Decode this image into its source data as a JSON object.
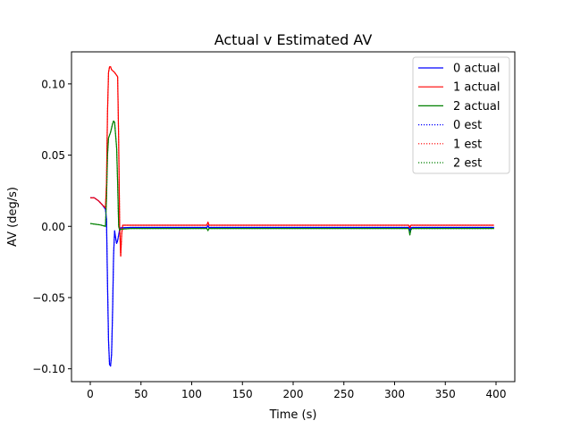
{
  "chart_data": {
    "type": "line",
    "title": "Actual v Estimated AV",
    "xlabel": "Time (s)",
    "ylabel": "AV (deg/s)",
    "xlim": [
      -18.5,
      418.5
    ],
    "ylim": [
      -0.109,
      0.1225
    ],
    "xticks": [
      0,
      50,
      100,
      150,
      200,
      250,
      300,
      350,
      400
    ],
    "yticks": [
      -0.1,
      -0.05,
      0.0,
      0.05,
      0.1
    ],
    "ytick_labels": [
      "−0.10",
      "−0.05",
      "0.00",
      "0.05",
      "0.10"
    ],
    "legend_position": "upper-right",
    "series": [
      {
        "name": "0 actual",
        "color": "#0000ff",
        "style": "solid",
        "points": [
          [
            0,
            0.02
          ],
          [
            4,
            0.02
          ],
          [
            8,
            0.018
          ],
          [
            12,
            0.015
          ],
          [
            15,
            0.012
          ],
          [
            16,
            0.005
          ],
          [
            17,
            -0.04
          ],
          [
            18,
            -0.08
          ],
          [
            19,
            -0.097
          ],
          [
            20,
            -0.098
          ],
          [
            21,
            -0.09
          ],
          [
            22,
            -0.06
          ],
          [
            23,
            -0.02
          ],
          [
            24,
            -0.003
          ],
          [
            25,
            -0.008
          ],
          [
            26,
            -0.012
          ],
          [
            27,
            -0.01
          ],
          [
            28,
            -0.006
          ],
          [
            29,
            -0.002
          ],
          [
            30,
            -0.001
          ],
          [
            40,
            -0.0008
          ],
          [
            80,
            -0.0008
          ],
          [
            115,
            -0.0008
          ],
          [
            116,
            0.0005
          ],
          [
            117,
            -0.0008
          ],
          [
            200,
            -0.0008
          ],
          [
            314,
            -0.0008
          ],
          [
            315,
            -0.003
          ],
          [
            316,
            -0.001
          ],
          [
            317,
            -0.0008
          ],
          [
            398,
            -0.0008
          ]
        ]
      },
      {
        "name": "1 actual",
        "color": "#ff0000",
        "style": "solid",
        "points": [
          [
            0,
            0.02
          ],
          [
            4,
            0.02
          ],
          [
            8,
            0.018
          ],
          [
            12,
            0.015
          ],
          [
            15,
            0.013
          ],
          [
            16,
            0.03
          ],
          [
            17,
            0.08
          ],
          [
            18,
            0.108
          ],
          [
            19,
            0.112
          ],
          [
            20,
            0.112
          ],
          [
            21,
            0.11
          ],
          [
            24,
            0.108
          ],
          [
            27,
            0.105
          ],
          [
            28,
            0.06
          ],
          [
            29,
            0.0
          ],
          [
            30,
            -0.021
          ],
          [
            31,
            -0.005
          ],
          [
            32,
            0.0008
          ],
          [
            40,
            0.0008
          ],
          [
            80,
            0.0008
          ],
          [
            115,
            0.0008
          ],
          [
            116,
            0.003
          ],
          [
            117,
            0.0008
          ],
          [
            200,
            0.0008
          ],
          [
            314,
            0.0008
          ],
          [
            315,
            -0.001
          ],
          [
            316,
            0.0008
          ],
          [
            398,
            0.0008
          ]
        ]
      },
      {
        "name": "2 actual",
        "color": "#008000",
        "style": "solid",
        "points": [
          [
            0,
            0.002
          ],
          [
            5,
            0.0015
          ],
          [
            10,
            0.001
          ],
          [
            15,
            0.0
          ],
          [
            16,
            0.02
          ],
          [
            17,
            0.05
          ],
          [
            18,
            0.062
          ],
          [
            20,
            0.066
          ],
          [
            22,
            0.072
          ],
          [
            23,
            0.074
          ],
          [
            24,
            0.073
          ],
          [
            26,
            0.055
          ],
          [
            27,
            0.03
          ],
          [
            28,
            0.0
          ],
          [
            29,
            -0.003
          ],
          [
            30,
            -0.002
          ],
          [
            40,
            -0.0015
          ],
          [
            80,
            -0.0015
          ],
          [
            115,
            -0.0015
          ],
          [
            116,
            -0.003
          ],
          [
            117,
            -0.0015
          ],
          [
            200,
            -0.0015
          ],
          [
            314,
            -0.0015
          ],
          [
            315,
            -0.006
          ],
          [
            316,
            -0.0025
          ],
          [
            317,
            -0.0015
          ],
          [
            398,
            -0.0015
          ]
        ]
      },
      {
        "name": "0 est",
        "color": "#0000ff",
        "style": "dotted",
        "points": [
          [
            0,
            0.02
          ],
          [
            4,
            0.02
          ],
          [
            8,
            0.018
          ],
          [
            12,
            0.015
          ],
          [
            15,
            0.012
          ],
          [
            16,
            0.005
          ],
          [
            17,
            -0.04
          ],
          [
            18,
            -0.08
          ],
          [
            19,
            -0.097
          ],
          [
            20,
            -0.098
          ],
          [
            21,
            -0.09
          ],
          [
            22,
            -0.06
          ],
          [
            23,
            -0.02
          ],
          [
            24,
            -0.003
          ],
          [
            25,
            -0.008
          ],
          [
            26,
            -0.012
          ],
          [
            27,
            -0.01
          ],
          [
            28,
            -0.006
          ],
          [
            29,
            -0.002
          ],
          [
            30,
            -0.001
          ],
          [
            40,
            -0.0008
          ],
          [
            80,
            -0.0008
          ],
          [
            115,
            -0.0008
          ],
          [
            116,
            0.0005
          ],
          [
            117,
            -0.0008
          ],
          [
            200,
            -0.0008
          ],
          [
            314,
            -0.0008
          ],
          [
            315,
            -0.003
          ],
          [
            316,
            -0.001
          ],
          [
            317,
            -0.0008
          ],
          [
            398,
            -0.0008
          ]
        ]
      },
      {
        "name": "1 est",
        "color": "#ff0000",
        "style": "dotted",
        "points": [
          [
            0,
            0.02
          ],
          [
            4,
            0.02
          ],
          [
            8,
            0.018
          ],
          [
            12,
            0.015
          ],
          [
            15,
            0.013
          ],
          [
            16,
            0.03
          ],
          [
            17,
            0.08
          ],
          [
            18,
            0.108
          ],
          [
            19,
            0.112
          ],
          [
            20,
            0.112
          ],
          [
            21,
            0.11
          ],
          [
            24,
            0.108
          ],
          [
            27,
            0.105
          ],
          [
            28,
            0.06
          ],
          [
            29,
            0.0
          ],
          [
            30,
            -0.021
          ],
          [
            31,
            -0.005
          ],
          [
            32,
            0.0008
          ],
          [
            40,
            0.0008
          ],
          [
            80,
            0.0008
          ],
          [
            115,
            0.0008
          ],
          [
            116,
            0.003
          ],
          [
            117,
            0.0008
          ],
          [
            200,
            0.0008
          ],
          [
            314,
            0.0008
          ],
          [
            315,
            -0.001
          ],
          [
            316,
            0.0008
          ],
          [
            398,
            0.0008
          ]
        ]
      },
      {
        "name": "2 est",
        "color": "#008000",
        "style": "dotted",
        "points": [
          [
            0,
            0.002
          ],
          [
            5,
            0.0015
          ],
          [
            10,
            0.001
          ],
          [
            15,
            0.0
          ],
          [
            16,
            0.02
          ],
          [
            17,
            0.05
          ],
          [
            18,
            0.062
          ],
          [
            20,
            0.066
          ],
          [
            22,
            0.072
          ],
          [
            23,
            0.074
          ],
          [
            24,
            0.073
          ],
          [
            26,
            0.055
          ],
          [
            27,
            0.03
          ],
          [
            28,
            0.0
          ],
          [
            29,
            -0.003
          ],
          [
            30,
            -0.002
          ],
          [
            40,
            -0.0015
          ],
          [
            80,
            -0.0015
          ],
          [
            115,
            -0.0015
          ],
          [
            116,
            -0.003
          ],
          [
            117,
            -0.0015
          ],
          [
            200,
            -0.0015
          ],
          [
            314,
            -0.0015
          ],
          [
            315,
            -0.006
          ],
          [
            316,
            -0.0025
          ],
          [
            317,
            -0.0015
          ],
          [
            398,
            -0.0015
          ]
        ]
      }
    ]
  }
}
